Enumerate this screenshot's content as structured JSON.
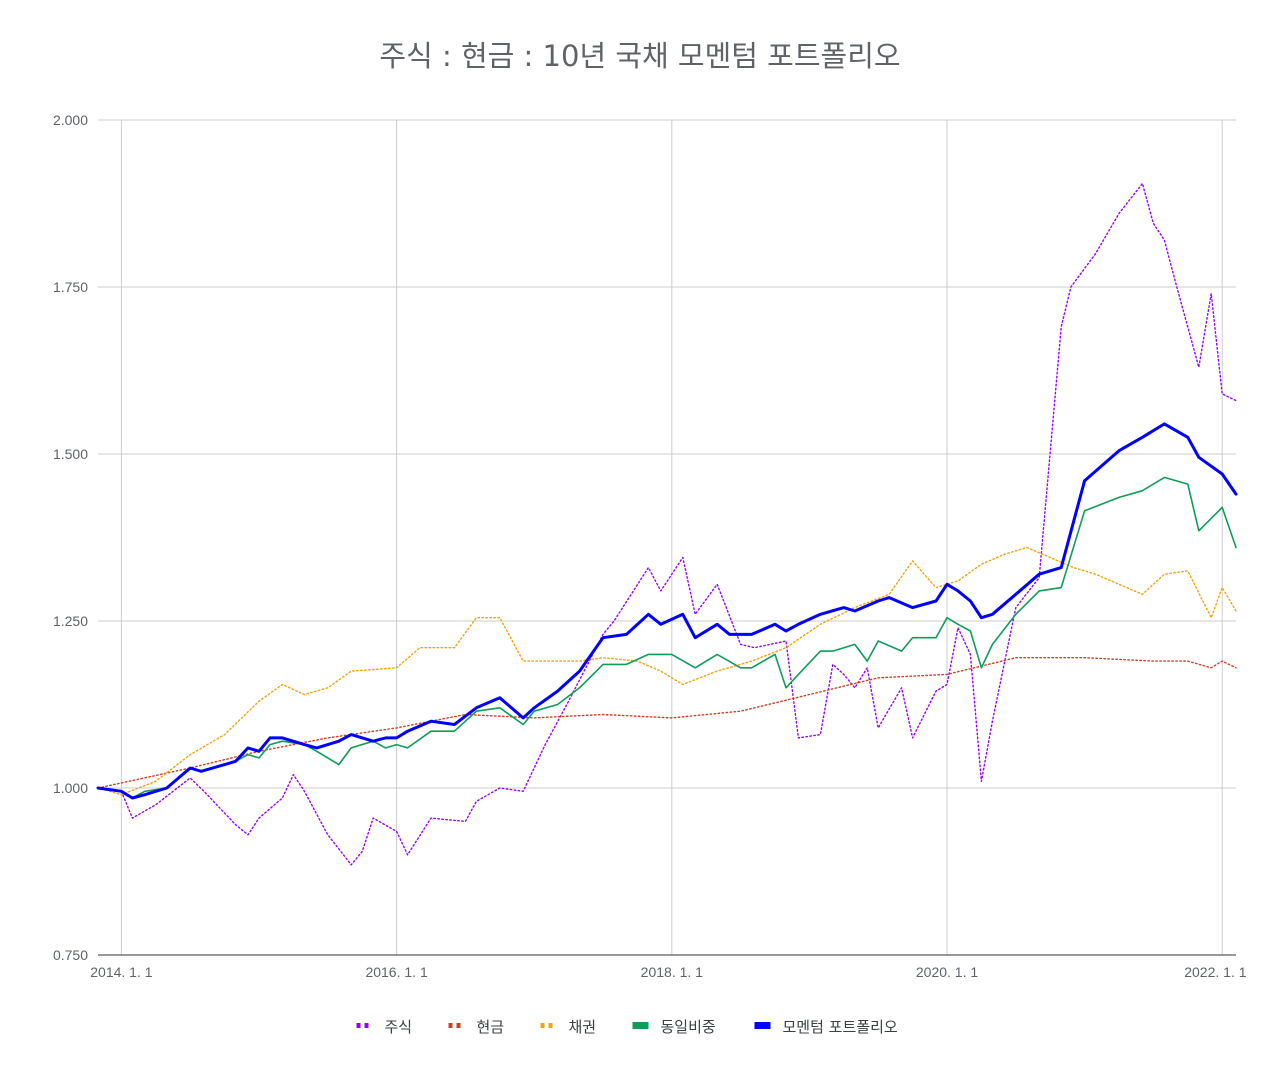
{
  "chart_data": {
    "type": "line",
    "title": "주식 : 현금 : 10년 국채 모멘텀 포트폴리오",
    "xlabel": "",
    "ylabel": "",
    "ylim": [
      0.75,
      2.0
    ],
    "y_ticks": [
      "2.000",
      "1.750",
      "1.500",
      "1.250",
      "1.000",
      "0.750"
    ],
    "y_tick_values": [
      2.0,
      1.75,
      1.5,
      1.25,
      1.0,
      0.75
    ],
    "x_ticks": [
      "2014. 1. 1",
      "2016. 1. 1",
      "2018. 1. 1",
      "2020. 1. 1",
      "2022. 1. 1"
    ],
    "x_tick_values": [
      2014.0,
      2016.0,
      2018.0,
      2020.0,
      2022.0
    ],
    "xlim": [
      2013.83,
      2022.1
    ],
    "grid": true,
    "legend_position": "bottom",
    "series": [
      {
        "name": "주식",
        "color": "#9900ff",
        "style": "dotted",
        "x": [
          2013.83,
          2014.0,
          2014.08,
          2014.25,
          2014.5,
          2014.6,
          2014.83,
          2014.92,
          2015.0,
          2015.17,
          2015.25,
          2015.33,
          2015.5,
          2015.67,
          2015.75,
          2015.83,
          2016.0,
          2016.08,
          2016.25,
          2016.5,
          2016.58,
          2016.75,
          2016.92,
          2017.08,
          2017.25,
          2017.5,
          2017.58,
          2017.83,
          2017.92,
          2018.08,
          2018.17,
          2018.33,
          2018.5,
          2018.6,
          2018.83,
          2018.92,
          2019.08,
          2019.17,
          2019.25,
          2019.33,
          2019.42,
          2019.5,
          2019.67,
          2019.75,
          2019.92,
          2020.0,
          2020.08,
          2020.17,
          2020.25,
          2020.33,
          2020.5,
          2020.67,
          2020.83,
          2020.9,
          2021.08,
          2021.25,
          2021.42,
          2021.5,
          2021.58,
          2021.67,
          2021.83,
          2021.92,
          2022.0,
          2022.1
        ],
        "values": [
          1.0,
          0.995,
          0.955,
          0.975,
          1.015,
          0.995,
          0.945,
          0.93,
          0.955,
          0.985,
          1.02,
          0.995,
          0.93,
          0.885,
          0.905,
          0.955,
          0.935,
          0.9,
          0.955,
          0.95,
          0.98,
          1.0,
          0.995,
          1.065,
          1.13,
          1.23,
          1.25,
          1.33,
          1.295,
          1.345,
          1.26,
          1.305,
          1.215,
          1.21,
          1.22,
          1.075,
          1.08,
          1.185,
          1.17,
          1.15,
          1.18,
          1.09,
          1.15,
          1.075,
          1.145,
          1.155,
          1.24,
          1.2,
          1.01,
          1.1,
          1.27,
          1.315,
          1.69,
          1.75,
          1.8,
          1.86,
          1.905,
          1.845,
          1.82,
          1.75,
          1.63,
          1.74,
          1.59,
          1.58
        ]
      },
      {
        "name": "현금",
        "color": "#cc4125",
        "style": "dotted",
        "x": [
          2013.83,
          2014.5,
          2015.0,
          2015.5,
          2016.0,
          2016.5,
          2017.0,
          2017.5,
          2018.0,
          2018.5,
          2019.0,
          2019.5,
          2020.0,
          2020.5,
          2021.0,
          2021.5,
          2021.75,
          2021.92,
          2022.0,
          2022.1
        ],
        "values": [
          1.0,
          1.03,
          1.055,
          1.075,
          1.09,
          1.11,
          1.105,
          1.11,
          1.105,
          1.115,
          1.14,
          1.165,
          1.17,
          1.195,
          1.195,
          1.19,
          1.19,
          1.18,
          1.19,
          1.18
        ]
      },
      {
        "name": "채권",
        "color": "#f1a20d",
        "style": "dotted",
        "x": [
          2013.83,
          2014.0,
          2014.25,
          2014.5,
          2014.75,
          2015.0,
          2015.17,
          2015.33,
          2015.5,
          2015.67,
          2016.0,
          2016.17,
          2016.42,
          2016.58,
          2016.75,
          2016.92,
          2017.08,
          2017.33,
          2017.5,
          2017.75,
          2017.92,
          2018.08,
          2018.33,
          2018.58,
          2018.83,
          2019.08,
          2019.33,
          2019.58,
          2019.75,
          2019.92,
          2020.08,
          2020.25,
          2020.42,
          2020.58,
          2020.75,
          2020.92,
          2021.08,
          2021.25,
          2021.42,
          2021.58,
          2021.75,
          2021.92,
          2022.0,
          2022.1
        ],
        "values": [
          1.0,
          0.99,
          1.01,
          1.05,
          1.08,
          1.13,
          1.155,
          1.14,
          1.15,
          1.175,
          1.18,
          1.21,
          1.21,
          1.255,
          1.255,
          1.19,
          1.19,
          1.19,
          1.195,
          1.19,
          1.175,
          1.155,
          1.175,
          1.19,
          1.21,
          1.245,
          1.27,
          1.29,
          1.34,
          1.3,
          1.31,
          1.335,
          1.35,
          1.36,
          1.345,
          1.33,
          1.32,
          1.305,
          1.29,
          1.32,
          1.325,
          1.255,
          1.3,
          1.265
        ]
      },
      {
        "name": "동일비중",
        "color": "#0f9d58",
        "style": "solid",
        "x": [
          2013.83,
          2014.0,
          2014.08,
          2014.17,
          2014.33,
          2014.5,
          2014.58,
          2014.75,
          2014.83,
          2014.92,
          2015.0,
          2015.08,
          2015.17,
          2015.33,
          2015.42,
          2015.58,
          2015.67,
          2015.83,
          2015.92,
          2016.0,
          2016.08,
          2016.25,
          2016.42,
          2016.58,
          2016.75,
          2016.92,
          2017.0,
          2017.17,
          2017.33,
          2017.5,
          2017.67,
          2017.83,
          2018.0,
          2018.17,
          2018.33,
          2018.5,
          2018.58,
          2018.75,
          2018.83,
          2018.92,
          2019.08,
          2019.17,
          2019.33,
          2019.42,
          2019.5,
          2019.67,
          2019.75,
          2019.92,
          2020.0,
          2020.08,
          2020.17,
          2020.25,
          2020.33,
          2020.5,
          2020.67,
          2020.83,
          2021.0,
          2021.25,
          2021.42,
          2021.58,
          2021.75,
          2021.83,
          2022.0,
          2022.1
        ],
        "values": [
          1.0,
          0.995,
          0.985,
          0.995,
          1.0,
          1.03,
          1.025,
          1.035,
          1.04,
          1.05,
          1.045,
          1.065,
          1.07,
          1.065,
          1.055,
          1.035,
          1.06,
          1.07,
          1.06,
          1.065,
          1.06,
          1.085,
          1.085,
          1.115,
          1.12,
          1.095,
          1.115,
          1.125,
          1.15,
          1.185,
          1.185,
          1.2,
          1.2,
          1.18,
          1.2,
          1.18,
          1.18,
          1.2,
          1.15,
          1.17,
          1.205,
          1.205,
          1.215,
          1.19,
          1.22,
          1.205,
          1.225,
          1.225,
          1.255,
          1.245,
          1.235,
          1.18,
          1.215,
          1.26,
          1.295,
          1.3,
          1.415,
          1.435,
          1.445,
          1.465,
          1.455,
          1.385,
          1.42,
          1.36
        ]
      },
      {
        "name": "모멘텀 포트폴리오",
        "color": "#0000ff",
        "style": "bold",
        "x": [
          2013.83,
          2014.0,
          2014.08,
          2014.17,
          2014.33,
          2014.5,
          2014.58,
          2014.75,
          2014.83,
          2014.92,
          2015.0,
          2015.08,
          2015.17,
          2015.33,
          2015.42,
          2015.58,
          2015.67,
          2015.83,
          2015.92,
          2016.0,
          2016.08,
          2016.25,
          2016.42,
          2016.58,
          2016.75,
          2016.92,
          2017.0,
          2017.17,
          2017.33,
          2017.5,
          2017.67,
          2017.83,
          2017.92,
          2018.08,
          2018.17,
          2018.33,
          2018.42,
          2018.58,
          2018.75,
          2018.83,
          2018.92,
          2019.08,
          2019.25,
          2019.33,
          2019.5,
          2019.58,
          2019.75,
          2019.92,
          2020.0,
          2020.08,
          2020.17,
          2020.25,
          2020.33,
          2020.5,
          2020.67,
          2020.83,
          2021.0,
          2021.25,
          2021.42,
          2021.58,
          2021.75,
          2021.83,
          2022.0,
          2022.1
        ],
        "values": [
          1.0,
          0.995,
          0.985,
          0.99,
          1.0,
          1.03,
          1.025,
          1.035,
          1.04,
          1.06,
          1.055,
          1.075,
          1.075,
          1.065,
          1.06,
          1.07,
          1.08,
          1.07,
          1.075,
          1.075,
          1.085,
          1.1,
          1.095,
          1.12,
          1.135,
          1.105,
          1.12,
          1.145,
          1.175,
          1.225,
          1.23,
          1.26,
          1.245,
          1.26,
          1.225,
          1.245,
          1.23,
          1.23,
          1.245,
          1.235,
          1.245,
          1.26,
          1.27,
          1.265,
          1.28,
          1.285,
          1.27,
          1.28,
          1.305,
          1.295,
          1.28,
          1.255,
          1.26,
          1.29,
          1.32,
          1.33,
          1.46,
          1.505,
          1.525,
          1.545,
          1.525,
          1.495,
          1.47,
          1.44
        ]
      }
    ]
  }
}
